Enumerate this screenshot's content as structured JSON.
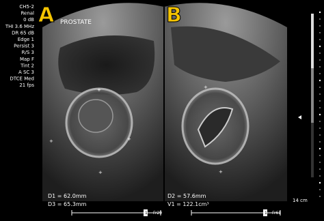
{
  "panels": {
    "a": {
      "letter": "A",
      "label": "PROSTATE",
      "measurements": [
        "D1 = 62.0mm",
        "D3 = 65.3mm"
      ],
      "frame": "Fr29",
      "page": "1"
    },
    "b": {
      "letter": "B",
      "measurements": [
        "D2 = 57.6mm",
        "V1 = 122.1cm³"
      ],
      "frame": "Fr61",
      "page": "1"
    }
  },
  "settings": [
    "CH5-2",
    "Renal",
    "0 dB",
    "THI 3.6 MHz",
    "DR 65 dB",
    "Edge 1",
    "Persist 3",
    "R/S 3",
    "Map F",
    "Tint 2",
    "A SC 3",
    "DTCE Med",
    "21 fps"
  ],
  "depth": "14 cm"
}
